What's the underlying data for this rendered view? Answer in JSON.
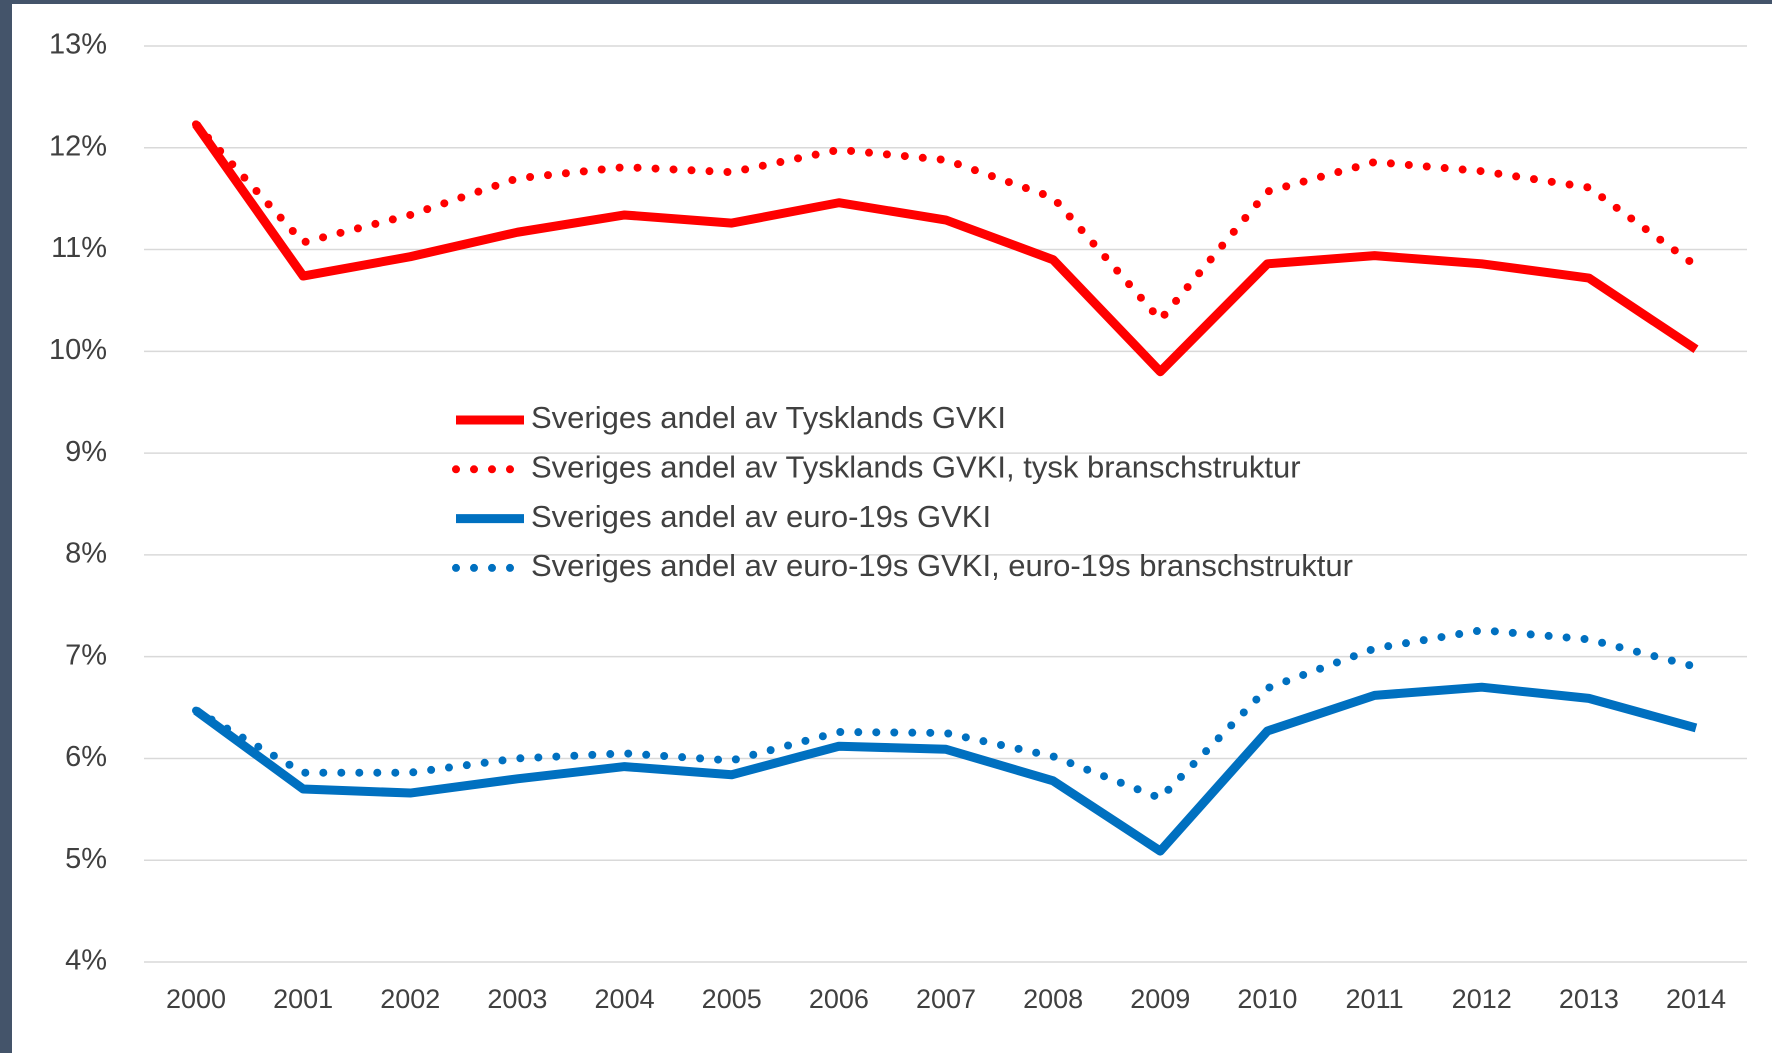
{
  "chart_data": {
    "type": "line",
    "x": [
      "2000",
      "2001",
      "2002",
      "2003",
      "2004",
      "2005",
      "2006",
      "2007",
      "2008",
      "2009",
      "2010",
      "2011",
      "2012",
      "2013",
      "2014"
    ],
    "series": [
      {
        "name": "Sveriges andel av Tysklands GVKI",
        "color": "#ff0000",
        "style": "solid",
        "values": [
          12.23,
          10.74,
          10.93,
          11.17,
          11.34,
          11.26,
          11.46,
          11.29,
          10.9,
          9.8,
          10.86,
          10.94,
          10.86,
          10.72,
          10.02
        ]
      },
      {
        "name": "Sveriges andel av Tysklands GVKI, tysk branschstruktur",
        "color": "#ff0000",
        "style": "dotted",
        "values": [
          12.23,
          11.07,
          11.34,
          11.7,
          11.81,
          11.76,
          11.98,
          11.88,
          11.51,
          10.31,
          11.57,
          11.86,
          11.77,
          11.61,
          10.84
        ]
      },
      {
        "name": "Sveriges andel av euro-19s GVKI",
        "color": "#0070c0",
        "style": "solid",
        "values": [
          6.47,
          5.7,
          5.66,
          5.8,
          5.92,
          5.84,
          6.12,
          6.09,
          5.78,
          5.09,
          6.27,
          6.62,
          6.7,
          6.59,
          6.3
        ]
      },
      {
        "name": "Sveriges andel av euro-19s GVKI, euro-19s branschstruktur",
        "color": "#0070c0",
        "style": "dotted",
        "values": [
          6.47,
          5.86,
          5.86,
          6.0,
          6.05,
          5.98,
          6.26,
          6.25,
          6.02,
          5.61,
          6.69,
          7.08,
          7.26,
          7.17,
          6.9
        ]
      }
    ],
    "ylim": [
      4,
      13
    ],
    "yticks": [
      {
        "value": 4,
        "label": "4%"
      },
      {
        "value": 5,
        "label": "5%"
      },
      {
        "value": 6,
        "label": "6%"
      },
      {
        "value": 7,
        "label": "7%"
      },
      {
        "value": 8,
        "label": "8%"
      },
      {
        "value": 9,
        "label": "9%"
      },
      {
        "value": 10,
        "label": "10%"
      },
      {
        "value": 11,
        "label": "11%"
      },
      {
        "value": 12,
        "label": "12%"
      },
      {
        "value": 13,
        "label": "13%"
      }
    ],
    "grid": true
  }
}
